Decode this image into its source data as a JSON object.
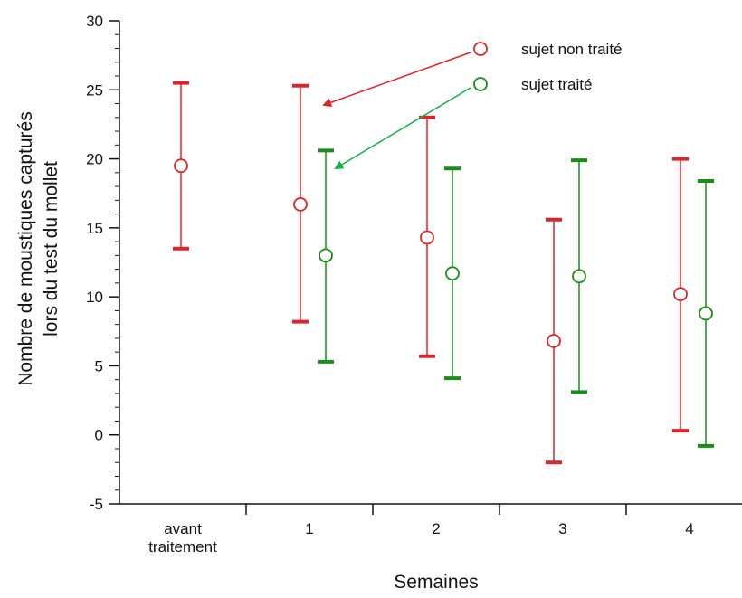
{
  "chart_data": {
    "type": "errorbar",
    "title": "",
    "xlabel": "Semaines",
    "ylabel": [
      "Nombre de moustiques capturés",
      "lors du test du mollet"
    ],
    "ylim": [
      -5,
      30
    ],
    "yticks": [
      -5,
      0,
      5,
      10,
      15,
      20,
      25,
      30
    ],
    "categories": [
      [
        "avant",
        "traitement"
      ],
      [
        "1"
      ],
      [
        "2"
      ],
      [
        "3"
      ],
      [
        "4"
      ]
    ],
    "grid": false,
    "legend_position": "top-right",
    "series": [
      {
        "name": "sujet non traité",
        "color": "#d9262b",
        "points": [
          {
            "category_index": 0,
            "mean": 19.5,
            "low": 13.5,
            "high": 25.5
          },
          {
            "category_index": 1,
            "mean": 16.7,
            "low": 8.2,
            "high": 25.3
          },
          {
            "category_index": 2,
            "mean": 14.3,
            "low": 5.7,
            "high": 23.0
          },
          {
            "category_index": 3,
            "mean": 6.8,
            "low": -2.0,
            "high": 15.6
          },
          {
            "category_index": 4,
            "mean": 10.2,
            "low": 0.3,
            "high": 20.0
          }
        ]
      },
      {
        "name": "sujet traité",
        "color": "#1a8c1a",
        "points": [
          {
            "category_index": 1,
            "mean": 13.0,
            "low": 5.3,
            "high": 20.6
          },
          {
            "category_index": 2,
            "mean": 11.7,
            "low": 4.1,
            "high": 19.3
          },
          {
            "category_index": 3,
            "mean": 11.5,
            "low": 3.1,
            "high": 19.9
          },
          {
            "category_index": 4,
            "mean": 8.8,
            "low": -0.8,
            "high": 18.4
          }
        ]
      }
    ]
  }
}
